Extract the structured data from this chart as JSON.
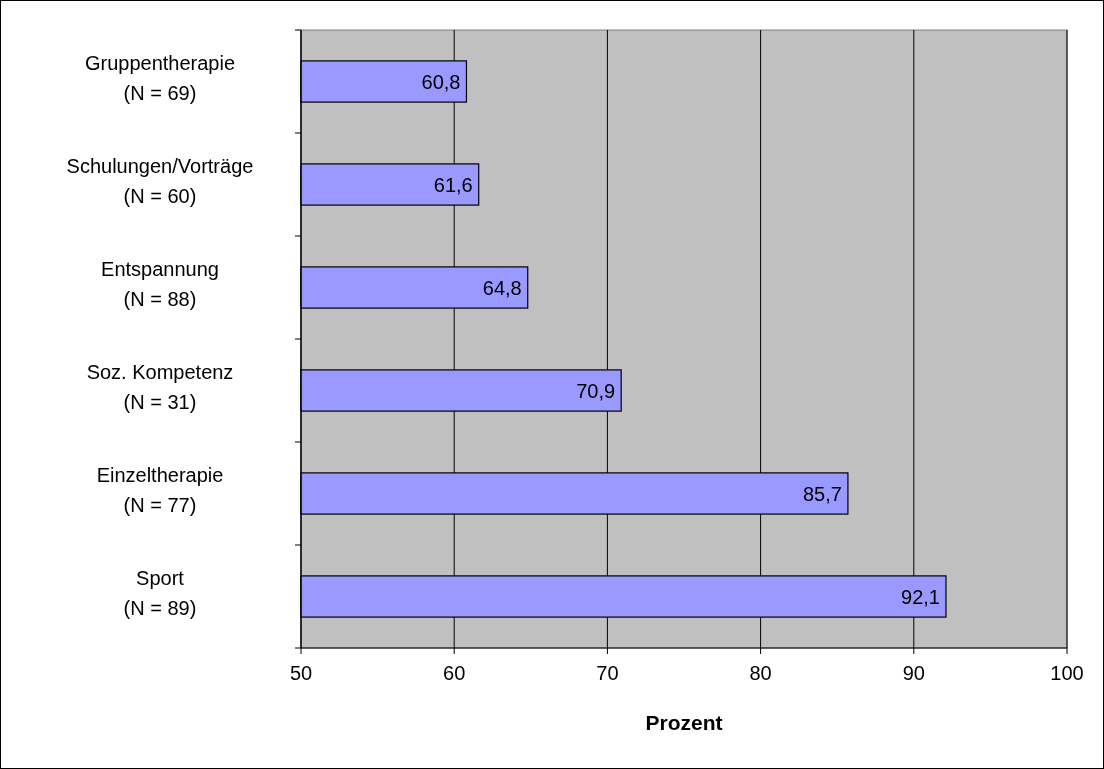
{
  "chart_data": {
    "type": "bar",
    "orientation": "horizontal",
    "xlabel": "Prozent",
    "categories": [
      "Gruppentherapie\n(N = 69)",
      "Schulungen/Vorträge\n(N = 60)",
      "Entspannung\n(N = 88)",
      "Soz. Kompetenz\n(N = 31)",
      "Einzeltherapie\n(N = 77)",
      "Sport\n(N = 89)"
    ],
    "values": [
      60.8,
      61.6,
      64.8,
      70.9,
      85.7,
      92.1
    ],
    "value_labels": [
      "60,8",
      "61,6",
      "64,8",
      "70,9",
      "85,7",
      "92,1"
    ],
    "color": "#9999ff",
    "xlim": [
      50,
      100
    ],
    "xticks": [
      50,
      60,
      70,
      80,
      90,
      100
    ],
    "grid": "x"
  }
}
